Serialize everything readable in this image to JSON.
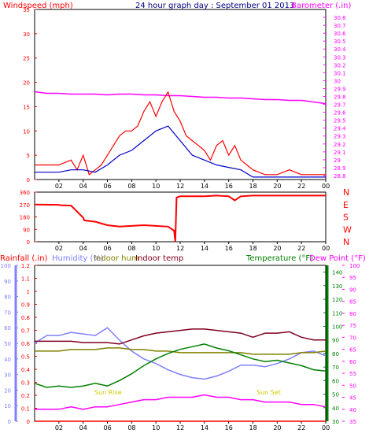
{
  "colors": {
    "wind": "#ff0000",
    "wind_avg": "#0000cc",
    "barometer": "#ff00ff",
    "direction": "#ff0000",
    "rain": "#ff0000",
    "humidity": "#8080ff",
    "indoor_hum": "#808000",
    "indoor_temp": "#800020",
    "temperature": "#008000",
    "dew_point": "#ff00ff",
    "axis": "#000000",
    "frame": "#000000",
    "sun": "#ffff00"
  },
  "chart_data": [
    {
      "type": "line",
      "panel": "wind-barometer",
      "title": "24 hour graph day : September 01 2013",
      "ylabel_left": "Windspeed (mph)",
      "ylabel_right": "Barometer (.in)",
      "x_ticks": [
        "02",
        "04",
        "06",
        "08",
        "10",
        "12",
        "14",
        "16",
        "18",
        "20",
        "22",
        "00"
      ],
      "ylim_left": [
        0,
        35
      ],
      "yticks_left": [
        "0",
        "5",
        "10",
        "15",
        "20",
        "25",
        "30",
        "35"
      ],
      "ylim_right": [
        28.75,
        30.9
      ],
      "yticks_right": [
        "28.8",
        "28.9",
        "29",
        "29.1",
        "29.2",
        "29.3",
        "29.4",
        "29.5",
        "29.6",
        "29.7",
        "29.8",
        "29.9",
        "30",
        "30.1",
        "30.2",
        "30.3",
        "30.4",
        "30.5",
        "30.6",
        "30.7",
        "30.8"
      ],
      "series": [
        {
          "name": "Windspeed (mph)",
          "x": [
            0,
            1,
            2,
            3,
            3.5,
            4,
            4.5,
            5,
            5.5,
            6,
            6.5,
            7,
            7.5,
            8,
            8.5,
            9,
            9.5,
            10,
            10.5,
            11,
            11.5,
            12,
            12.5,
            13,
            13.5,
            14,
            14.5,
            15,
            15.5,
            16,
            16.5,
            17,
            17.5,
            18,
            19,
            20,
            21,
            22,
            23,
            24
          ],
          "values": [
            3,
            3,
            3,
            4,
            2,
            5,
            1,
            2,
            3,
            5,
            7,
            9,
            10,
            10,
            11,
            14,
            16,
            13,
            16,
            18,
            14,
            12,
            9,
            8,
            7,
            6,
            4,
            7,
            8,
            5,
            7,
            4,
            3,
            2,
            1,
            1,
            2,
            1,
            1,
            1
          ]
        },
        {
          "name": "Windspeed avg (mph)",
          "x": [
            0,
            1,
            2,
            3,
            4,
            5,
            6,
            7,
            8,
            9,
            10,
            11,
            12,
            13,
            14,
            15,
            16,
            17,
            18,
            19,
            20,
            21,
            22,
            23,
            24
          ],
          "values": [
            1.5,
            1.5,
            1.5,
            2,
            2,
            1.5,
            3,
            5,
            6,
            8,
            10,
            11,
            8,
            5,
            4,
            3,
            2.5,
            2,
            0.5,
            0.5,
            0.5,
            0.5,
            0.5,
            0.5,
            0.5
          ]
        },
        {
          "name": "Barometer (.in)",
          "x": [
            0,
            1,
            2,
            3,
            4,
            5,
            6,
            7,
            8,
            9,
            10,
            11,
            12,
            13,
            14,
            15,
            16,
            17,
            18,
            19,
            20,
            21,
            22,
            23,
            24
          ],
          "values": [
            29.86,
            29.84,
            29.84,
            29.83,
            29.83,
            29.83,
            29.82,
            29.83,
            29.83,
            29.82,
            29.82,
            29.81,
            29.81,
            29.8,
            29.79,
            29.79,
            29.78,
            29.78,
            29.77,
            29.76,
            29.76,
            29.75,
            29.75,
            29.73,
            29.71
          ]
        }
      ]
    },
    {
      "type": "line",
      "panel": "wind-direction",
      "x_ticks": [
        "02",
        "04",
        "06",
        "08",
        "10",
        "12",
        "14",
        "16",
        "18",
        "20",
        "22",
        "00"
      ],
      "ylim": [
        0,
        360
      ],
      "yticks": [
        "0",
        "90",
        "180",
        "270",
        "360"
      ],
      "compass_labels": [
        "N",
        "W",
        "S",
        "E",
        "N"
      ],
      "series": [
        {
          "name": "Wind direction",
          "x": [
            0,
            2,
            2.1,
            3,
            4,
            4.1,
            5,
            6,
            7,
            8,
            9,
            10,
            11,
            11.5,
            11.6,
            11.7,
            12,
            13,
            14,
            15,
            16,
            16.5,
            17,
            18,
            19,
            20,
            21,
            22,
            23,
            24
          ],
          "values": [
            270,
            268,
            265,
            262,
            175,
            155,
            145,
            120,
            110,
            115,
            120,
            115,
            110,
            80,
            0,
            320,
            330,
            330,
            330,
            335,
            330,
            300,
            330,
            335,
            335,
            335,
            335,
            335,
            335,
            335
          ]
        }
      ]
    },
    {
      "type": "line",
      "panel": "temperature-humidity-rain",
      "x_ticks": [
        "02",
        "04",
        "06",
        "08",
        "10",
        "12",
        "14",
        "16",
        "18",
        "20",
        "22",
        "00"
      ],
      "ylabel_rain": "Rainfall (.in)",
      "ylabel_humidity": "Humidity (%)",
      "ylabel_indoor_hum": "Indoor hum",
      "ylabel_indoor_temp": "Indoor temp",
      "ylabel_temperature": "Temperature (°F)",
      "ylabel_dewpoint": "Dew Point (°F)",
      "ylim_rain": [
        0,
        1.2
      ],
      "yticks_rain": [
        "0",
        "0.1",
        "0.2",
        "0.3",
        "0.4",
        "0.5",
        "0.6",
        "0.7",
        "0.8",
        "0.9",
        "1",
        "1.1",
        "1.2"
      ],
      "ylim_humidity": [
        0,
        100
      ],
      "yticks_humidity": [
        "0",
        "10",
        "20",
        "30",
        "40",
        "50",
        "60",
        "70",
        "80",
        "90",
        "100"
      ],
      "ylim_temperature": [
        30,
        145
      ],
      "yticks_temperature": [
        "30",
        "40",
        "50",
        "60",
        "70",
        "80",
        "90",
        "100",
        "110",
        "120",
        "130",
        "140"
      ],
      "ylim_dewpoint": [
        35,
        100
      ],
      "yticks_dewpoint": [
        "35",
        "40",
        "45",
        "50",
        "55",
        "60",
        "65",
        "70",
        "75",
        "80",
        "85",
        "90",
        "95",
        "100"
      ],
      "annotations": [
        "Sun Rise",
        "Sun Set"
      ],
      "series": [
        {
          "name": "Humidity (%)",
          "x": [
            0,
            1,
            2,
            3,
            4,
            5,
            6,
            7,
            8,
            9,
            10,
            11,
            12,
            13,
            14,
            15,
            16,
            17,
            18,
            19,
            20,
            21,
            22,
            23,
            24
          ],
          "values": [
            50,
            55,
            55,
            57,
            56,
            55,
            60,
            52,
            45,
            40,
            37,
            33,
            30,
            28,
            27,
            29,
            32,
            36,
            36,
            35,
            37,
            40,
            44,
            45,
            42
          ]
        },
        {
          "name": "Indoor hum",
          "x": [
            0,
            1,
            2,
            3,
            4,
            5,
            6,
            7,
            8,
            9,
            10,
            11,
            12,
            13,
            14,
            15,
            16,
            17,
            18,
            19,
            20,
            21,
            22,
            23,
            24
          ],
          "values": [
            45,
            45,
            45,
            46,
            46,
            46,
            47,
            47,
            46,
            46,
            45,
            45,
            44,
            44,
            44,
            44,
            44,
            44,
            43,
            43,
            43,
            43,
            44,
            44,
            45
          ]
        },
        {
          "name": "Indoor temp",
          "x": [
            0,
            1,
            2,
            3,
            4,
            5,
            6,
            7,
            8,
            9,
            10,
            11,
            12,
            13,
            14,
            15,
            16,
            17,
            18,
            19,
            20,
            21,
            22,
            23,
            24
          ],
          "values": [
            89,
            89,
            89,
            89,
            88,
            88,
            88,
            87,
            90,
            93,
            95,
            96,
            97,
            98,
            98,
            97,
            96,
            95,
            92,
            95,
            95,
            96,
            92,
            90,
            90
          ]
        },
        {
          "name": "Temperature (°F)",
          "x": [
            0,
            1,
            2,
            3,
            4,
            5,
            6,
            7,
            8,
            9,
            10,
            11,
            12,
            13,
            14,
            15,
            16,
            17,
            18,
            19,
            20,
            21,
            22,
            23,
            24
          ],
          "values": [
            58,
            55,
            56,
            55,
            56,
            58,
            56,
            60,
            65,
            71,
            76,
            80,
            83,
            85,
            87,
            84,
            82,
            79,
            76,
            74,
            75,
            73,
            71,
            68,
            67
          ]
        },
        {
          "name": "Rainfall (.in)",
          "x": [
            0,
            24
          ],
          "values": [
            0,
            0
          ]
        },
        {
          "name": "Dew Point (°F)",
          "x": [
            0,
            1,
            2,
            3,
            4,
            5,
            6,
            7,
            8,
            9,
            10,
            11,
            12,
            13,
            14,
            15,
            16,
            17,
            18,
            19,
            20,
            21,
            22,
            23,
            24
          ],
          "values": [
            40,
            40,
            40,
            41,
            40,
            41,
            41,
            42,
            43,
            44,
            44,
            45,
            45,
            45,
            46,
            45,
            45,
            44,
            44,
            43,
            43,
            43,
            42,
            42,
            41
          ]
        }
      ]
    }
  ]
}
